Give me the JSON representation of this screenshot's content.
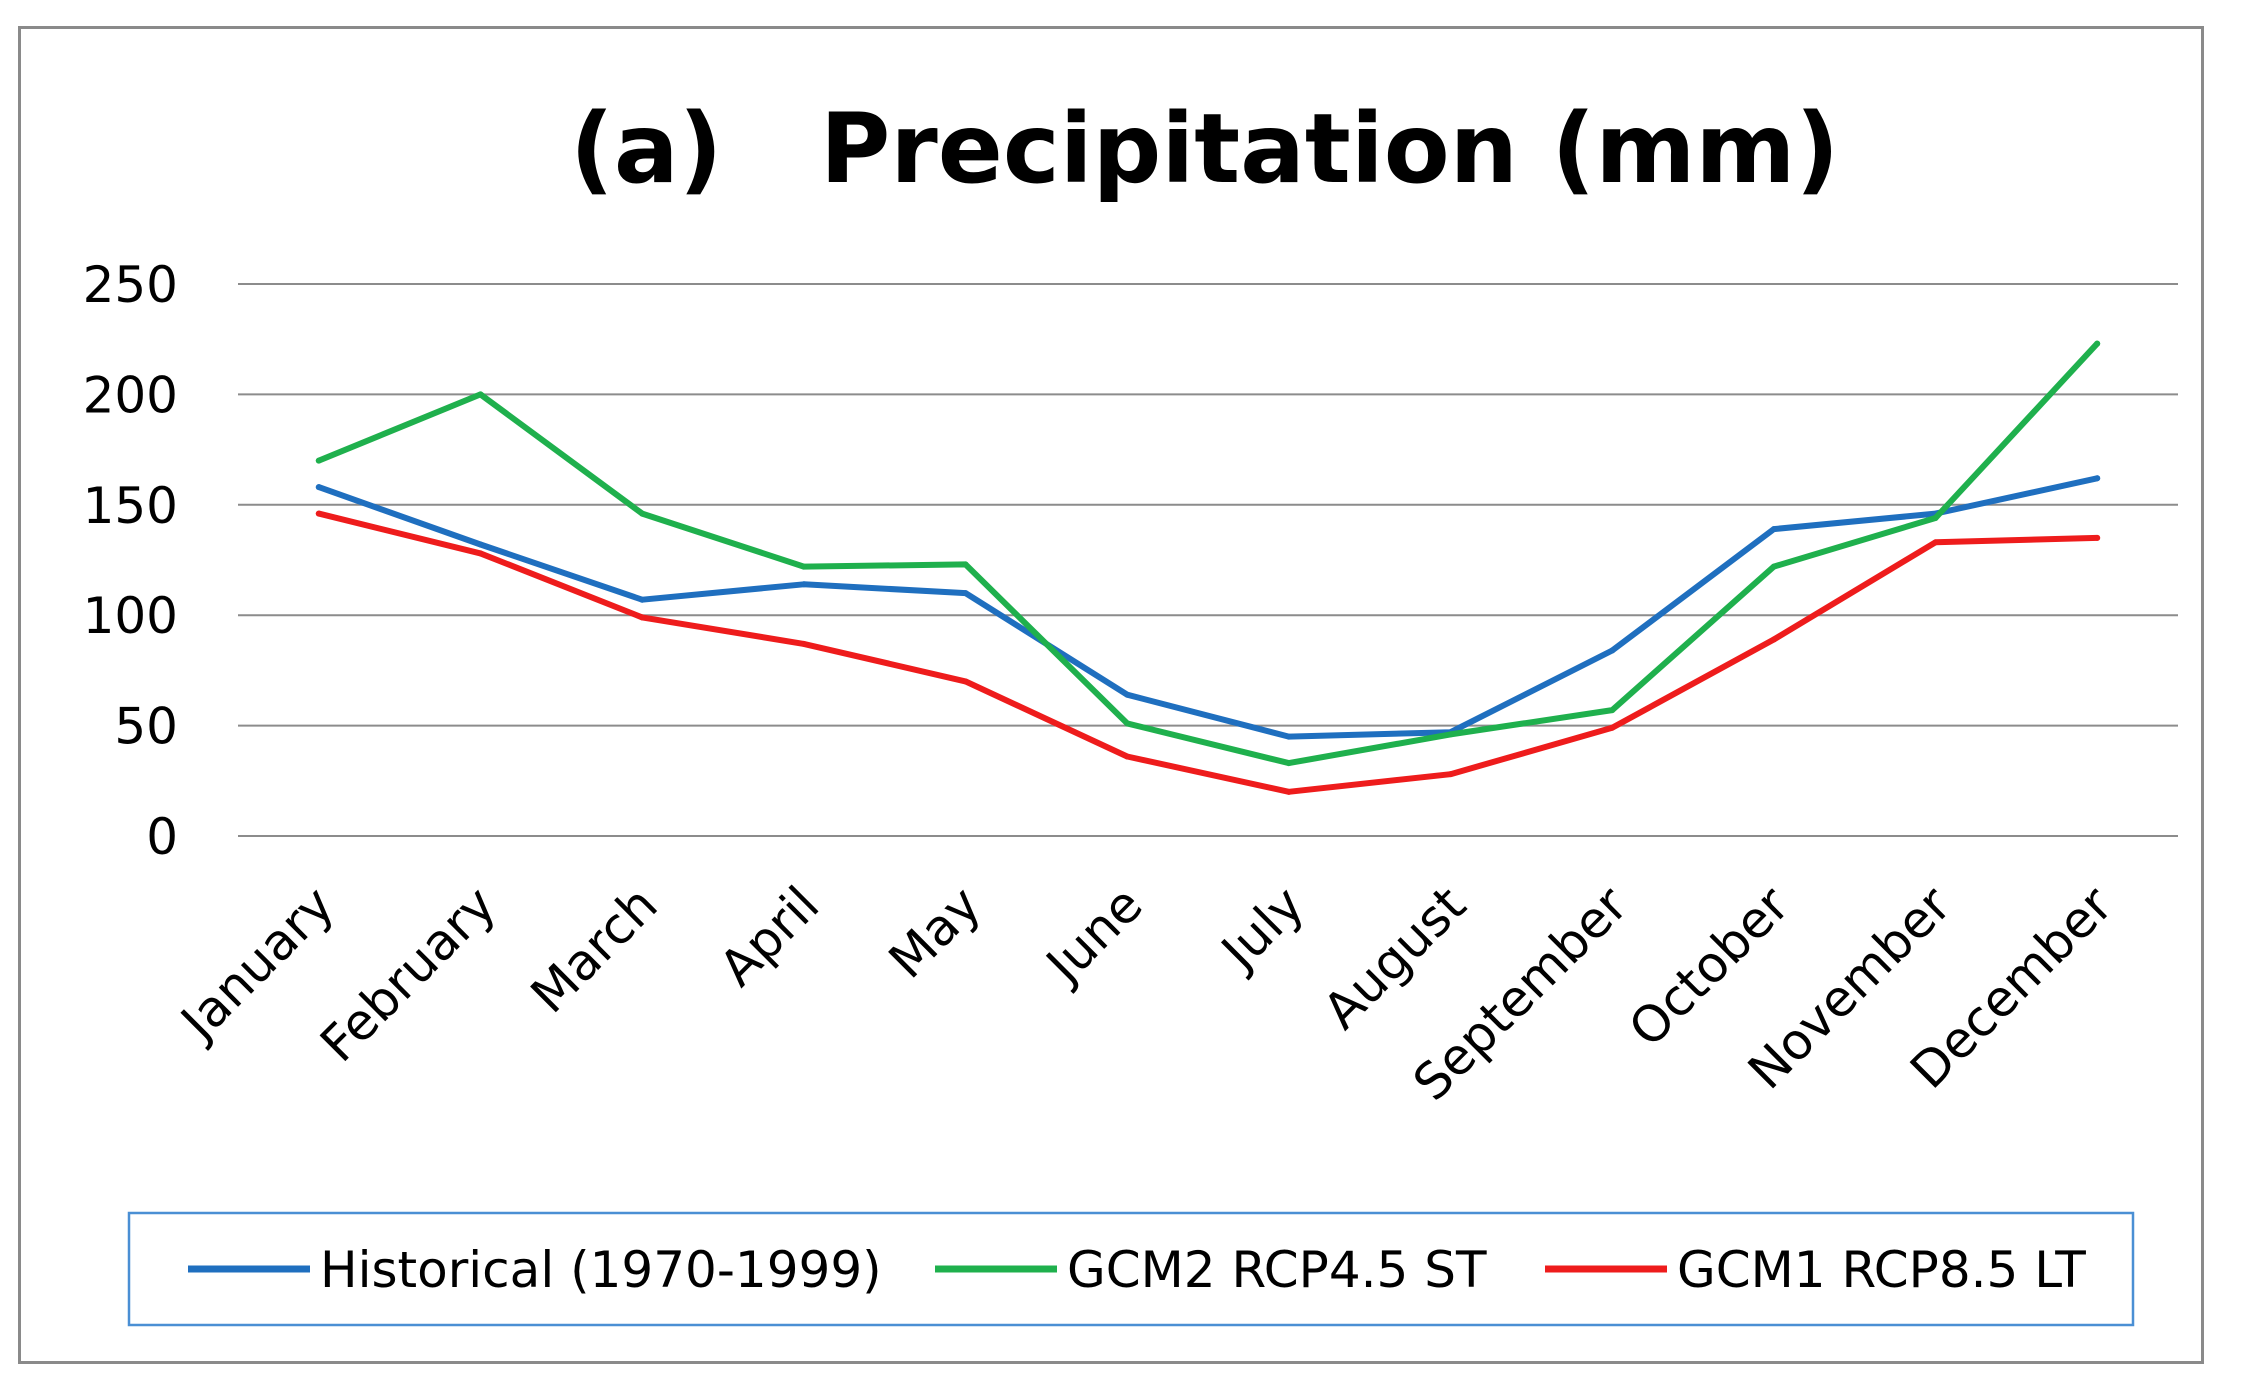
{
  "chart_data": {
    "type": "line",
    "title_label": "(a)",
    "title": "Precipitation (mm)",
    "categories": [
      "January",
      "February",
      "March",
      "April",
      "May",
      "June",
      "July",
      "August",
      "September",
      "October",
      "November",
      "December"
    ],
    "ylim": [
      0,
      250
    ],
    "yticks": [
      0,
      50,
      100,
      150,
      200,
      250
    ],
    "grid": true,
    "legend_position": "bottom",
    "series": [
      {
        "name": "Historical (1970-1999)",
        "color": "#1f6fbf",
        "values": [
          158,
          132,
          107,
          114,
          110,
          64,
          45,
          47,
          84,
          139,
          146,
          162
        ]
      },
      {
        "name": "GCM2 RCP4.5 ST",
        "color": "#1fb04d",
        "values": [
          170,
          200,
          146,
          122,
          123,
          51,
          33,
          46,
          57,
          122,
          144,
          223
        ]
      },
      {
        "name": "GCM1 RCP8.5 LT",
        "color": "#ee1c1c",
        "values": [
          146,
          128,
          99,
          87,
          70,
          36,
          20,
          28,
          49,
          89,
          133,
          135
        ]
      }
    ]
  }
}
